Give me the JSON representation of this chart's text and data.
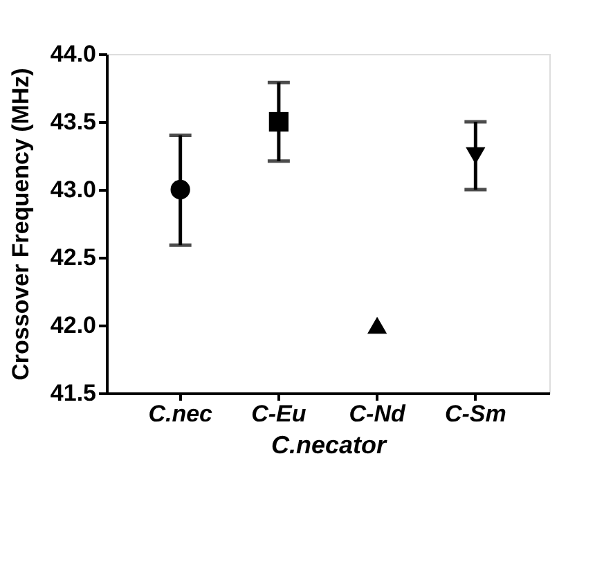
{
  "chart_data": {
    "type": "scatter",
    "xlabel": "C.necator",
    "ylabel": "Crossover Frequency (MHz)",
    "categories": [
      "C.nec",
      "C-Eu",
      "C-Nd",
      "C-Sm"
    ],
    "series": [
      {
        "color": "#000000",
        "marker": "circle",
        "values": [
          43.0,
          null,
          null,
          null
        ],
        "errors": [
          [
            42.59,
            43.4
          ],
          null,
          null,
          null
        ]
      },
      {
        "color": "#000000",
        "marker": "square",
        "values": [
          null,
          43.5,
          null,
          null
        ],
        "errors": [
          null,
          [
            43.21,
            43.79
          ],
          null,
          null
        ]
      },
      {
        "color": "#000000",
        "marker": "triangle",
        "values": [
          null,
          null,
          42.0,
          null
        ],
        "errors": [
          null,
          null,
          null,
          null
        ]
      },
      {
        "color": "#000000",
        "marker": "triangle-down",
        "values": [
          null,
          null,
          null,
          43.25
        ],
        "errors": [
          null,
          null,
          null,
          [
            43.0,
            43.5
          ]
        ]
      }
    ],
    "ylim": [
      41.5,
      44.0
    ],
    "yticks": [
      41.5,
      {
        "value": 42,
        "label": "42.0"
      },
      42.5,
      {
        "value": 43,
        "label": "43.0"
      },
      43.5,
      {
        "value": 44,
        "label": "44.0"
      }
    ],
    "grid": false
  }
}
